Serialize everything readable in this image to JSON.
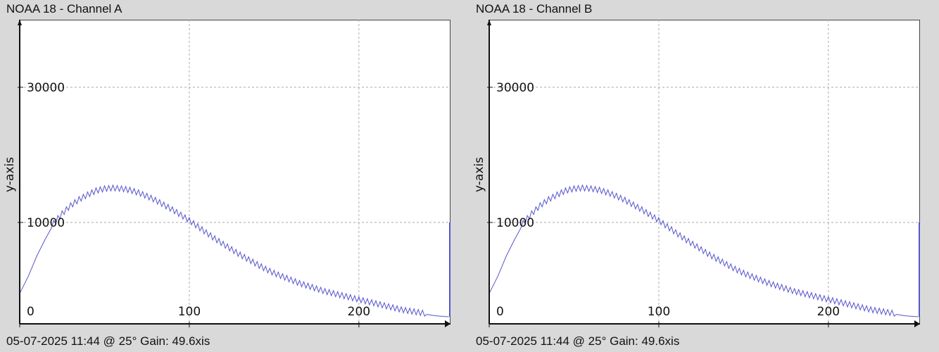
{
  "panels": [
    {
      "title": "NOAA 18 - Channel A",
      "footer": "05-07-2025 11:44 @ 25° Gain: 49.6",
      "ylabel": "y-axis",
      "xlabel_fragment": "xis"
    },
    {
      "title": "NOAA 18 - Channel B",
      "footer": "05-07-2025 11:44 @ 25° Gain: 49.6",
      "ylabel": "y-axis",
      "xlabel_fragment": "xis"
    }
  ],
  "chart_data": [
    {
      "type": "line",
      "title": "NOAA 18 - Channel A",
      "xlabel": "",
      "ylabel": "y-axis",
      "xlim": [
        0,
        254
      ],
      "ylim": [
        -5000,
        40000
      ],
      "xticks": [
        0,
        100,
        200
      ],
      "yticks": [
        10000,
        30000
      ],
      "grid": true,
      "color": "#5555cc",
      "series": [
        {
          "x": [
            0,
            5,
            10,
            15,
            20,
            25,
            30,
            35,
            40,
            45,
            50,
            55,
            60,
            65,
            70,
            75,
            80,
            85,
            90,
            95,
            100,
            105,
            110,
            115,
            120,
            125,
            130,
            135,
            140,
            145,
            150,
            155,
            160,
            165,
            170,
            175,
            180,
            185,
            190,
            195,
            200,
            205,
            210,
            215,
            220,
            225,
            230,
            235,
            240,
            245,
            250,
            253,
            254
          ],
          "values": [
            -500,
            2000,
            5000,
            7500,
            9800,
            11200,
            12400,
            13300,
            14000,
            14600,
            14900,
            15000,
            14900,
            14700,
            14300,
            13800,
            13200,
            12500,
            11800,
            11000,
            10200,
            9300,
            8400,
            7500,
            6700,
            5900,
            5100,
            4400,
            3700,
            3000,
            2400,
            1900,
            1400,
            900,
            500,
            100,
            -300,
            -600,
            -900,
            -1200,
            -1500,
            -1800,
            -2100,
            -2400,
            -2700,
            -3000,
            -3200,
            -3400,
            -3600,
            -3800,
            -3900,
            -3950,
            10000
          ]
        }
      ]
    },
    {
      "type": "line",
      "title": "NOAA 18 - Channel B",
      "xlabel": "",
      "ylabel": "y-axis",
      "xlim": [
        0,
        254
      ],
      "ylim": [
        -5000,
        40000
      ],
      "xticks": [
        0,
        100,
        200
      ],
      "yticks": [
        10000,
        30000
      ],
      "grid": true,
      "color": "#5555cc",
      "series": [
        {
          "x": [
            0,
            5,
            10,
            15,
            20,
            25,
            30,
            35,
            40,
            45,
            50,
            55,
            60,
            65,
            70,
            75,
            80,
            85,
            90,
            95,
            100,
            105,
            110,
            115,
            120,
            125,
            130,
            135,
            140,
            145,
            150,
            155,
            160,
            165,
            170,
            175,
            180,
            185,
            190,
            195,
            200,
            205,
            210,
            215,
            220,
            225,
            230,
            235,
            240,
            245,
            250,
            253,
            254
          ],
          "values": [
            -500,
            2000,
            5000,
            7500,
            9800,
            11200,
            12400,
            13300,
            14000,
            14600,
            14900,
            15000,
            14900,
            14700,
            14300,
            13800,
            13200,
            12500,
            11800,
            11000,
            10200,
            9300,
            8400,
            7500,
            6700,
            5900,
            5100,
            4400,
            3700,
            3000,
            2400,
            1900,
            1400,
            900,
            500,
            100,
            -300,
            -600,
            -900,
            -1200,
            -1500,
            -1800,
            -2100,
            -2400,
            -2700,
            -3000,
            -3200,
            -3400,
            -3600,
            -3800,
            -3900,
            -3950,
            10000
          ]
        }
      ]
    }
  ]
}
